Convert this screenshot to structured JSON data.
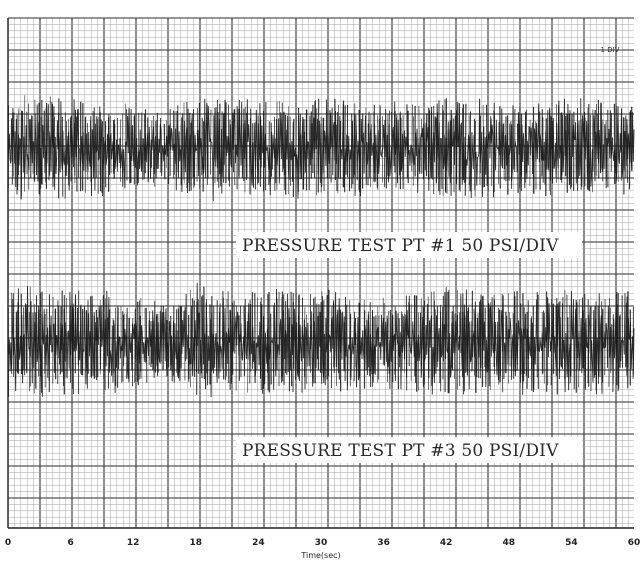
{
  "chart_data": {
    "type": "line",
    "title": "",
    "xlabel": "Time(sec)",
    "ylabel": "",
    "x_ticks": [
      "0",
      "6",
      "12",
      "18",
      "24",
      "30",
      "36",
      "42",
      "48",
      "54",
      "60"
    ],
    "xlim": [
      0,
      60
    ],
    "scale_note": "1 DIV",
    "grid": true,
    "series": [
      {
        "name": "PRESSURE TEST PT #1 50 PSI/DIV",
        "label": "PRESSURE TEST PT #1 50 PSI/DIV",
        "units_per_div": "50 PSI/DIV",
        "envelope_by_time": [
          {
            "t": 0,
            "amp_div": 1.6
          },
          {
            "t": 6,
            "amp_div": 1.5
          },
          {
            "t": 12,
            "amp_div": 1.3
          },
          {
            "t": 15,
            "amp_div": 1.1
          },
          {
            "t": 18,
            "amp_div": 1.6
          },
          {
            "t": 24,
            "amp_div": 1.4
          },
          {
            "t": 30,
            "amp_div": 1.5
          },
          {
            "t": 36,
            "amp_div": 1.3
          },
          {
            "t": 42,
            "amp_div": 1.5
          },
          {
            "t": 48,
            "amp_div": 1.4
          },
          {
            "t": 54,
            "amp_div": 1.5
          },
          {
            "t": 60,
            "amp_div": 1.4
          }
        ]
      },
      {
        "name": "PRESSURE TEST PT #3 50 PSI/DIV",
        "label": "PRESSURE TEST PT #3 50 PSI/DIV",
        "units_per_div": "50 PSI/DIV",
        "envelope_by_time": [
          {
            "t": 0,
            "amp_div": 1.7
          },
          {
            "t": 6,
            "amp_div": 1.6
          },
          {
            "t": 12,
            "amp_div": 1.4
          },
          {
            "t": 15,
            "amp_div": 1.1
          },
          {
            "t": 18,
            "amp_div": 1.7
          },
          {
            "t": 24,
            "amp_div": 1.5
          },
          {
            "t": 30,
            "amp_div": 1.6
          },
          {
            "t": 36,
            "amp_div": 1.4
          },
          {
            "t": 42,
            "amp_div": 1.6
          },
          {
            "t": 48,
            "amp_div": 1.5
          },
          {
            "t": 54,
            "amp_div": 1.6
          },
          {
            "t": 60,
            "amp_div": 1.5
          }
        ]
      }
    ],
    "colors": {
      "paper": "#ffffff",
      "grid_minor": "#9a9a9a",
      "grid_major": "#2f2f2f",
      "trace": "#1a1a1a"
    }
  }
}
